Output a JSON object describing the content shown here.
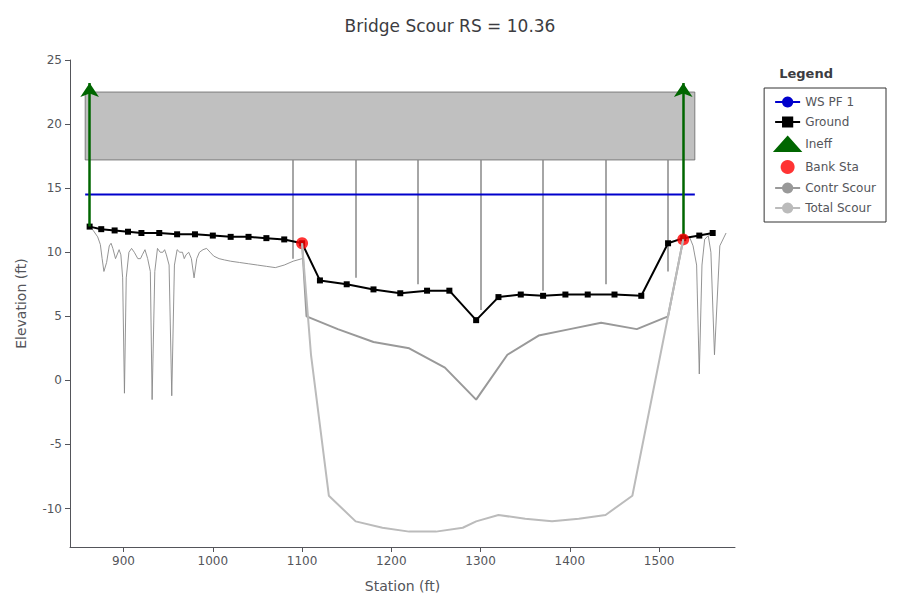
{
  "chart_data": {
    "type": "line",
    "title": "Bridge Scour RS = 10.36",
    "xlabel": "Station (ft)",
    "ylabel": "Elevation (ft)",
    "xlim": [
      840,
      1585
    ],
    "ylim": [
      -13,
      25
    ],
    "xticks": [
      900,
      1000,
      1100,
      1200,
      1300,
      1400,
      1500
    ],
    "yticks": [
      -10,
      -5,
      0,
      5,
      10,
      15,
      20,
      25
    ],
    "grid": false,
    "legend": "upper right",
    "legend_title": "Legend",
    "series": [
      {
        "type": "rect",
        "x": [
          857,
          1540
        ],
        "y": [
          17.2,
          22.5
        ],
        "color": "#c0c0c0"
      },
      {
        "type": "segments",
        "x": [
          1090,
          1160,
          1230,
          1300,
          1370,
          1440,
          1510
        ],
        "y_bottom": [
          9.5,
          8.0,
          7.5,
          5.5,
          7.0,
          7.5,
          8.5
        ],
        "y_top": [
          17.2,
          17.2,
          17.2,
          17.2,
          17.2,
          17.2,
          17.2
        ],
        "color": "#888888"
      },
      {
        "type": "line",
        "color": "#888888",
        "x": [
          862,
          866,
          868,
          871,
          874,
          876,
          878,
          881,
          884,
          886,
          888,
          891,
          895,
          897,
          899,
          901,
          903,
          906,
          909,
          912,
          916,
          919,
          921,
          924,
          927,
          930,
          932,
          935,
          938,
          941,
          944,
          946,
          948,
          951,
          954,
          957,
          960,
          963,
          966,
          968,
          970,
          973,
          976,
          979,
          982,
          985,
          989,
          993,
          997,
          1001,
          1007,
          1013,
          1020,
          1030,
          1040,
          1050,
          1060,
          1070,
          1080,
          1090,
          1100
        ],
        "values": [
          12.0,
          11.7,
          11.5,
          11.2,
          10.6,
          9.5,
          8.5,
          9.2,
          10.5,
          10.7,
          10.3,
          9.5,
          10.2,
          9.8,
          8.0,
          -1.0,
          8.0,
          10.0,
          10.3,
          10.0,
          9.5,
          9.5,
          9.8,
          10.2,
          9.5,
          8.5,
          -1.5,
          8.5,
          10.3,
          10.0,
          10.0,
          10.2,
          9.8,
          9.0,
          -1.2,
          9.0,
          10.2,
          10.0,
          10.0,
          9.5,
          9.8,
          10.0,
          9.5,
          8.0,
          9.5,
          10.0,
          10.2,
          10.3,
          10.0,
          9.7,
          9.5,
          9.4,
          9.3,
          9.2,
          9.1,
          9.0,
          8.9,
          8.8,
          9.0,
          9.3,
          9.5
        ]
      },
      {
        "type": "line",
        "color": "#888888",
        "x": [
          1527,
          1530,
          1534,
          1538,
          1542,
          1545,
          1548,
          1551,
          1555,
          1558,
          1562,
          1568,
          1575
        ],
        "values": [
          11.0,
          11.1,
          11.2,
          10.5,
          9.0,
          0.5,
          9.0,
          11.0,
          11.3,
          10.0,
          2.0,
          10.5,
          11.5
        ]
      },
      {
        "type": "line",
        "name": "WS PF 1",
        "color": "#0000cc",
        "x": [
          857,
          1540
        ],
        "values": [
          14.5,
          14.5
        ]
      },
      {
        "type": "line",
        "name": "Ground",
        "color": "#000000",
        "marker": "square",
        "x": [
          862,
          875,
          890,
          905,
          920,
          940,
          960,
          980,
          1000,
          1020,
          1040,
          1060,
          1080,
          1100,
          1120,
          1150,
          1180,
          1210,
          1240,
          1265,
          1295,
          1320,
          1345,
          1370,
          1395,
          1420,
          1450,
          1480,
          1510,
          1527,
          1545,
          1560
        ],
        "values": [
          12.0,
          11.8,
          11.7,
          11.6,
          11.5,
          11.5,
          11.4,
          11.4,
          11.3,
          11.2,
          11.2,
          11.1,
          11.0,
          10.7,
          7.8,
          7.5,
          7.1,
          6.8,
          7.0,
          7.0,
          4.7,
          6.5,
          6.7,
          6.6,
          6.7,
          6.7,
          6.7,
          6.6,
          10.7,
          11.1,
          11.3,
          11.5
        ]
      },
      {
        "type": "arrows",
        "name": "Ineff",
        "color": "#006600",
        "marker": "triangle",
        "x": [
          862,
          1527
        ],
        "y_bottom": [
          12.0,
          11.0
        ],
        "y_top": [
          23.2,
          23.2
        ]
      },
      {
        "type": "scatter",
        "name": "Bank Sta",
        "color": "#ff0000",
        "marker": "circle",
        "x": [
          1100,
          1527
        ],
        "values": [
          10.7,
          11.0
        ]
      },
      {
        "type": "line",
        "name": "Contr Scour",
        "color": "#999999",
        "x": [
          1100,
          1105,
          1140,
          1180,
          1220,
          1260,
          1295,
          1330,
          1365,
          1400,
          1435,
          1475,
          1510,
          1527
        ],
        "values": [
          10.7,
          5.0,
          4.0,
          3.0,
          2.5,
          1.0,
          -1.5,
          2.0,
          3.5,
          4.0,
          4.5,
          4.0,
          5.0,
          11.0
        ]
      },
      {
        "type": "line",
        "name": "Total Scour",
        "color": "#bbbbbb",
        "x": [
          1100,
          1110,
          1130,
          1160,
          1190,
          1220,
          1250,
          1280,
          1295,
          1320,
          1350,
          1380,
          1410,
          1440,
          1470,
          1510,
          1527
        ],
        "values": [
          10.7,
          2.0,
          -9.0,
          -11.0,
          -11.5,
          -11.8,
          -11.8,
          -11.5,
          -11.0,
          -10.5,
          -10.8,
          -11.0,
          -10.8,
          -10.5,
          -9.0,
          5.0,
          11.0
        ]
      }
    ]
  }
}
